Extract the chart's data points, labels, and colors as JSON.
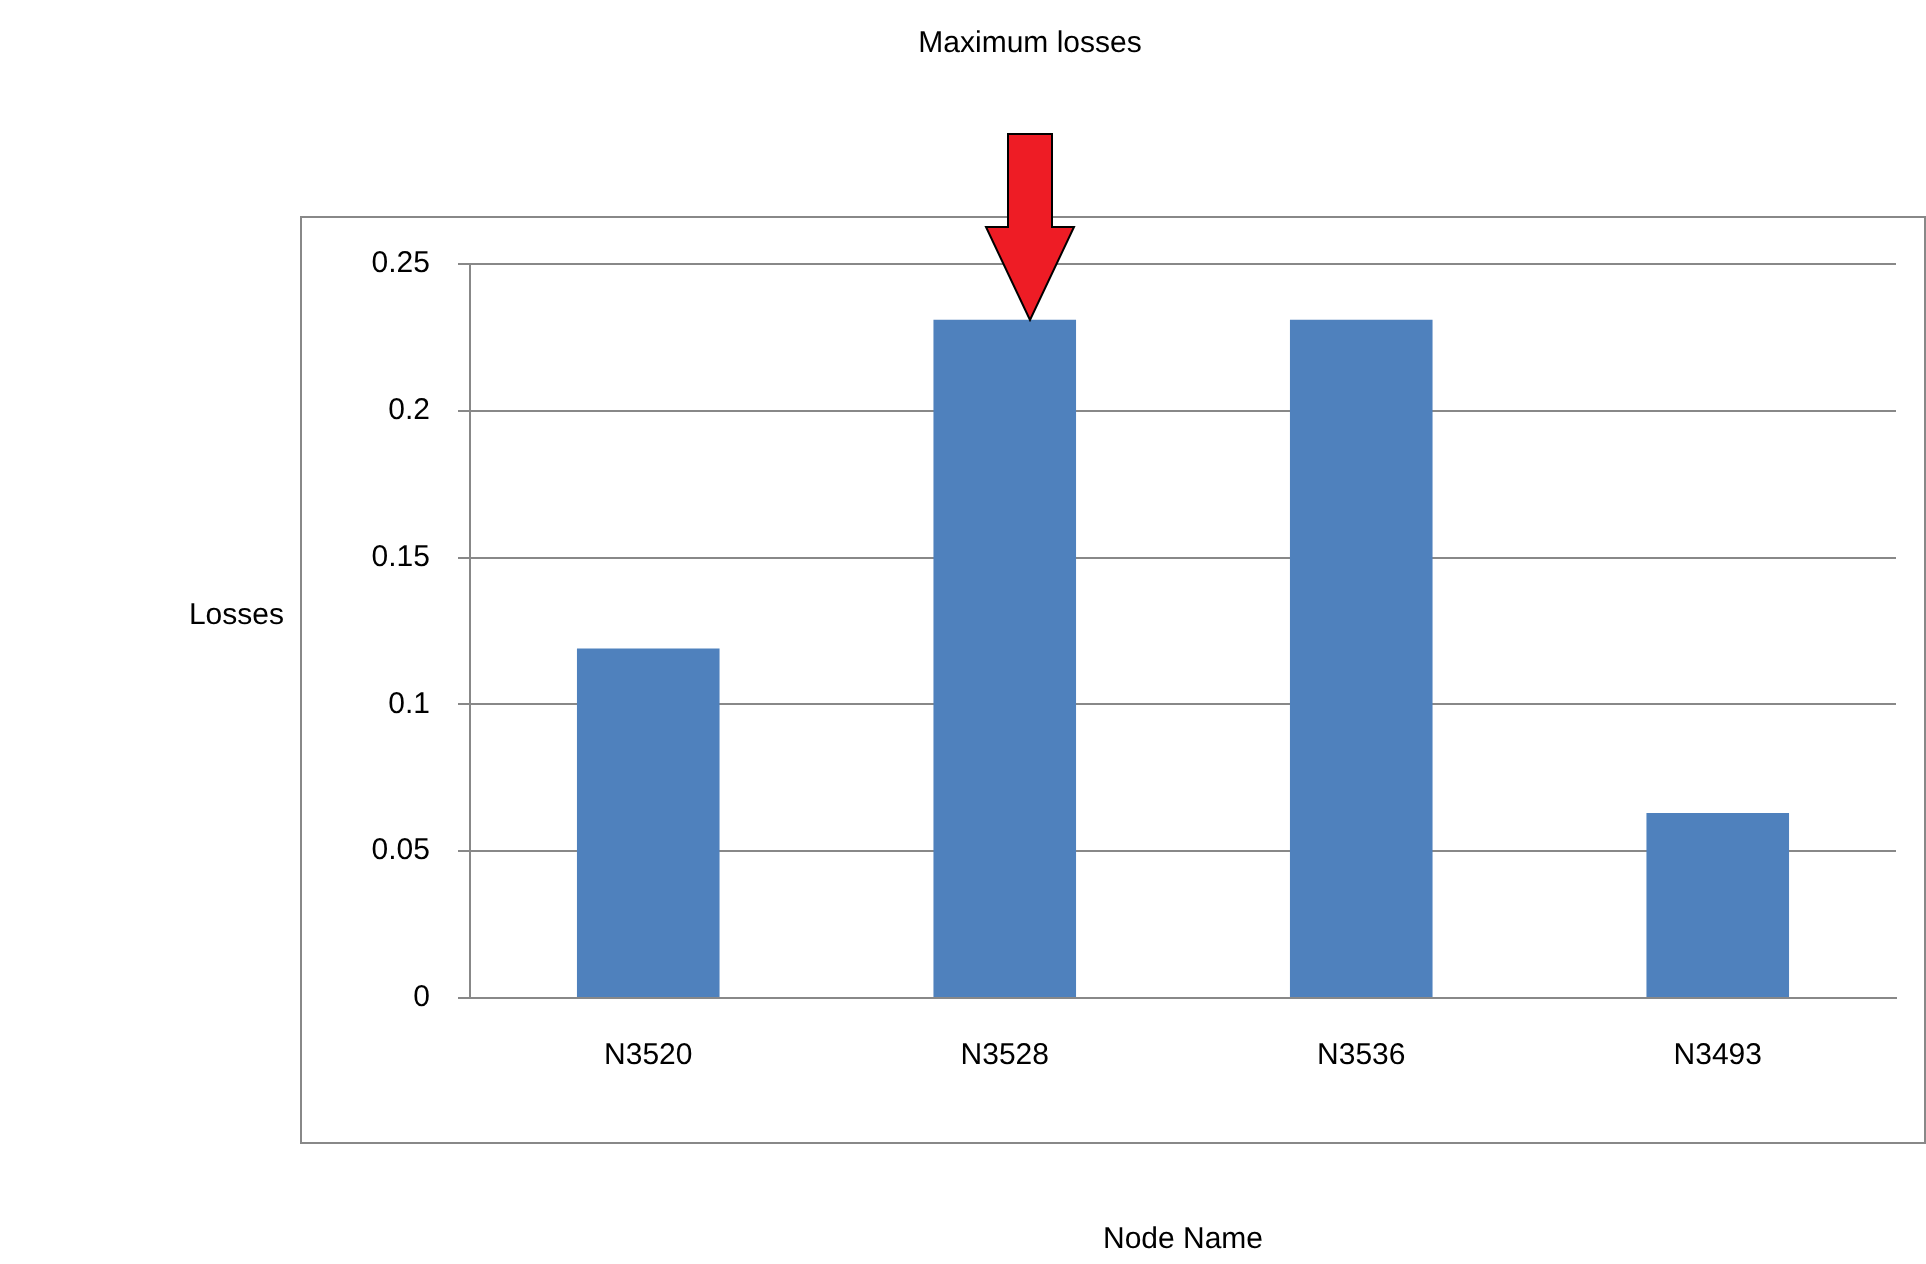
{
  "chart_data": {
    "type": "bar",
    "xlabel": "Node Name",
    "ylabel": "Losses",
    "categories": [
      "N3520",
      "N3528",
      "N3536",
      "N3493"
    ],
    "values": [
      0.119,
      0.231,
      0.231,
      0.063
    ],
    "color": "#4f81bd",
    "ylim": [
      0,
      0.25
    ],
    "yticks": [
      0,
      0.05,
      0.1,
      0.15,
      0.2,
      0.25
    ],
    "grid": "y",
    "legend": false,
    "annotations": [
      "Maximum losses"
    ]
  }
}
